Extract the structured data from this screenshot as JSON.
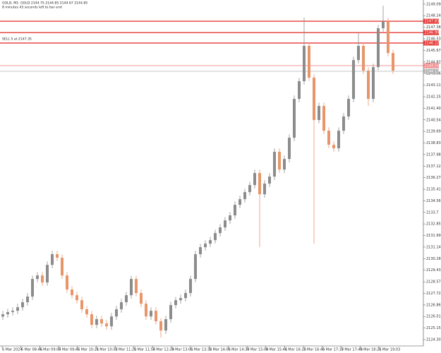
{
  "chart_data": {
    "type": "candlestick",
    "header": "GOLD, M1: GOLD 2144.75 2144.85 2144.67 2144.85",
    "subheader": "8 minutes 43 seconds left to bar end",
    "annotation": "SELL 5 at 2147.35",
    "up_color": "#8c8c8c",
    "down_color": "#e8956a",
    "ylim": [
      2123.83,
      2149.4
    ],
    "yticks": [
      2149.09,
      2148.24,
      2147.38,
      2146.53,
      2145.67,
      2144.82,
      2143.96,
      2143.11,
      2142.25,
      {
        "value": 2141.4,
        "label": "2141.40"
      },
      2140.54,
      2139.69,
      2138.83,
      2137.98,
      2137.12,
      2136.27,
      2135.41,
      2134.56,
      2133.7,
      2132.85,
      2131.99,
      2131.14,
      2130.28,
      2129.43,
      2128.57,
      2127.72,
      2126.86,
      2126.01,
      2125.15,
      {
        "value": 2124.3,
        "label": "2124.30"
      }
    ],
    "x_labels": [
      "6 Mar 2024",
      "6 Mar 08:46",
      "6 Mar 09:07",
      "6 Mar 09:45",
      "6 Mar 10:21",
      "6 Mar 10:53",
      "6 Mar 11:25",
      "6 Mar 11:57",
      "6 Mar 12:29",
      "6 Mar 13:01",
      "6 Mar 13:32",
      "6 Mar 14:05",
      "6 Mar 14:37",
      "6 Mar 15:09",
      "6 Mar 15:41",
      "6 Mar 16:13",
      "6 Mar 16:45",
      "6 Mar 17:17",
      "6 Mar 17:49",
      "6 Mar 18:21",
      "6 Mar 19:03"
    ],
    "levels": [
      {
        "value": 2147.83,
        "color": "#e53935"
      },
      {
        "value": 2146.99,
        "color": "#e53935"
      },
      {
        "value": 2146.22,
        "color": "#e53935"
      },
      {
        "value": 2144.55,
        "color": "#f08a8a"
      },
      {
        "value": 2144.13,
        "color": "#b0b0b0"
      }
    ],
    "open": [
      2126.0,
      2126.17,
      2126.33,
      2126.43,
      2126.69,
      2127.06,
      2127.48,
      2128.78,
      2129.04,
      2128.52,
      2129.82,
      2130.61,
      2130.35,
      2129.04,
      2128.0,
      2127.58,
      2127.21,
      2126.54,
      2126.17,
      2125.39,
      2125.81,
      2125.49,
      2125.28,
      2126.01,
      2126.54,
      2127.06,
      2127.58,
      2128.78,
      2127.74,
      2126.95,
      2126.01,
      2126.43,
      2125.65,
      2124.97,
      2125.81,
      2126.85,
      2127.21,
      2127.37,
      2127.74,
      2128.78,
      2130.61,
      2131.13,
      2131.39,
      2131.65,
      2132.17,
      2132.59,
      2133.11,
      2133.48,
      2134.26,
      2134.68,
      2135.2,
      2135.72,
      2136.61,
      2135.04,
      2135.83,
      2136.35,
      2138.18,
      2136.87,
      2137.65,
      2139.22,
      2142.09,
      2143.4,
      2146.01,
      2143.66,
      2140.53,
      2141.57,
      2139.74,
      2138.7,
      2138.44,
      2139.74,
      2140.79,
      2142.09,
      2144.96,
      2146.01,
      2144.18,
      2142.09,
      2144.44,
      2147.31,
      2147.83,
      2145.48
    ],
    "high": [
      2126.42,
      2126.58,
      2126.68,
      2126.94,
      2127.31,
      2127.73,
      2129.03,
      2129.29,
      2129.29,
      2130.07,
      2130.86,
      2130.86,
      2130.6,
      2129.29,
      2128.25,
      2127.83,
      2127.46,
      2126.79,
      2126.42,
      2126.06,
      2126.06,
      2125.74,
      2126.26,
      2126.79,
      2127.31,
      2127.83,
      2129.03,
      2129.03,
      2127.99,
      2127.2,
      2126.68,
      2126.68,
      2125.9,
      2126.06,
      2127.1,
      2127.46,
      2127.62,
      2127.99,
      2129.03,
      2130.86,
      2131.38,
      2131.64,
      2131.9,
      2132.42,
      2132.84,
      2133.36,
      2133.73,
      2134.51,
      2134.93,
      2135.45,
      2135.97,
      2136.86,
      2136.86,
      2136.08,
      2136.6,
      2138.43,
      2138.43,
      2137.9,
      2139.47,
      2142.34,
      2143.65,
      2148.1,
      2146.26,
      2143.91,
      2141.82,
      2141.82,
      2139.99,
      2138.95,
      2139.99,
      2141.04,
      2142.34,
      2145.21,
      2146.95,
      2146.26,
      2144.43,
      2144.69,
      2147.56,
      2148.98,
      2148.08,
      2145.73
    ],
    "low": [
      2125.75,
      2125.92,
      2126.08,
      2126.18,
      2126.44,
      2126.81,
      2127.23,
      2128.53,
      2128.27,
      2128.27,
      2129.57,
      2130.1,
      2128.79,
      2127.75,
      2127.33,
      2126.96,
      2126.29,
      2125.92,
      2125.14,
      2125.14,
      2125.24,
      2125.03,
      2125.03,
      2125.76,
      2126.29,
      2126.81,
      2127.33,
      2127.49,
      2126.7,
      2125.76,
      2125.76,
      2125.4,
      2124.45,
      2124.72,
      2125.56,
      2126.6,
      2126.96,
      2127.12,
      2127.49,
      2128.53,
      2130.36,
      2130.88,
      2131.14,
      2131.4,
      2131.92,
      2132.34,
      2132.86,
      2133.23,
      2134.01,
      2134.43,
      2134.95,
      2135.47,
      2131.13,
      2134.79,
      2135.58,
      2136.1,
      2136.62,
      2136.62,
      2137.4,
      2138.97,
      2141.84,
      2143.15,
      2143.41,
      2131.39,
      2140.28,
      2139.49,
      2138.45,
      2138.19,
      2138.19,
      2139.49,
      2140.54,
      2141.84,
      2144.71,
      2143.93,
      2141.57,
      2141.84,
      2144.19,
      2147.06,
      2145.23,
      2143.93
    ],
    "close": [
      2126.17,
      2126.33,
      2126.43,
      2126.69,
      2127.06,
      2127.48,
      2128.78,
      2129.04,
      2128.52,
      2129.82,
      2130.61,
      2130.35,
      2129.04,
      2128.0,
      2127.58,
      2127.21,
      2126.54,
      2126.17,
      2125.39,
      2125.81,
      2125.49,
      2125.28,
      2126.01,
      2126.54,
      2127.06,
      2127.58,
      2128.78,
      2127.74,
      2126.95,
      2126.01,
      2126.43,
      2125.65,
      2124.97,
      2125.81,
      2126.85,
      2127.21,
      2127.37,
      2127.74,
      2128.78,
      2130.61,
      2131.13,
      2131.39,
      2131.65,
      2132.17,
      2132.59,
      2133.11,
      2133.48,
      2134.26,
      2134.68,
      2135.2,
      2135.72,
      2136.61,
      2135.04,
      2135.83,
      2136.35,
      2138.18,
      2136.87,
      2137.65,
      2139.22,
      2142.09,
      2143.4,
      2146.01,
      2143.66,
      2140.53,
      2141.57,
      2139.74,
      2138.7,
      2138.44,
      2139.74,
      2140.79,
      2142.09,
      2144.96,
      2146.01,
      2144.18,
      2142.09,
      2144.44,
      2147.31,
      2147.83,
      2145.48,
      2144.18
    ]
  }
}
